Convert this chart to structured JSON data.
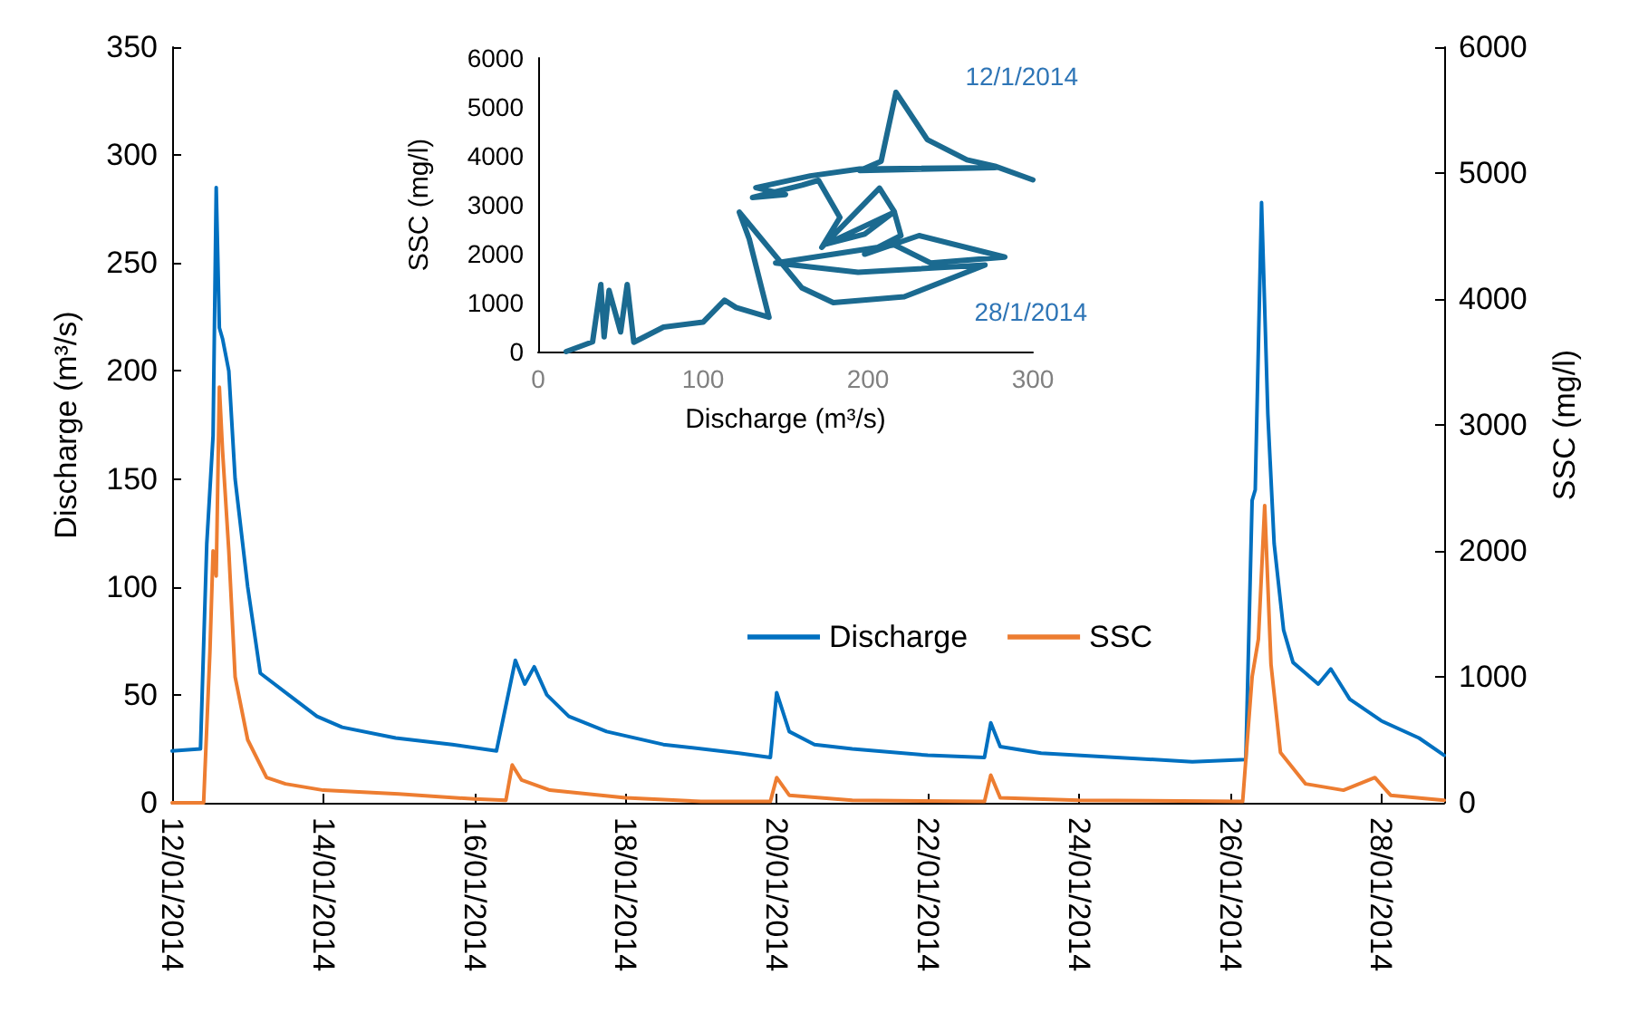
{
  "chart_data": [
    {
      "type": "line",
      "ylabel": "Discharge (m³/s)",
      "y2label": "SSC (mg/l)",
      "legend": "right",
      "marker": "none",
      "xlim": [
        "2014-01-12T00:00",
        "2014-01-28T20:00"
      ],
      "xticks": [
        {
          "value": "2014-01-12T00:00",
          "label": "12/01/2014"
        },
        {
          "value": "2014-01-14T00:00",
          "label": "14/01/2014"
        },
        {
          "value": "2014-01-16T00:00",
          "label": "16/01/2014"
        },
        {
          "value": "2014-01-18T00:00",
          "label": "18/01/2014"
        },
        {
          "value": "2014-01-20T00:00",
          "label": "20/01/2014"
        },
        {
          "value": "2014-01-22T00:00",
          "label": "22/01/2014"
        },
        {
          "value": "2014-01-24T00:00",
          "label": "24/01/2014"
        },
        {
          "value": "2014-01-26T00:00",
          "label": "26/01/2014"
        },
        {
          "value": "2014-01-28T00:00",
          "label": "28/01/2014"
        }
      ],
      "ylim": [
        0,
        350
      ],
      "yticks": [
        0,
        50,
        100,
        150,
        200,
        250,
        300,
        350
      ],
      "y2lim": [
        0,
        6000
      ],
      "y2ticks": [
        0,
        1000,
        2000,
        3000,
        4000,
        5000,
        6000
      ],
      "series": [
        {
          "name": "Discharge",
          "color": "#0070c0",
          "x": [
            "2014-01-12T00:00",
            "2014-01-12T09:00",
            "2014-01-12T11:00",
            "2014-01-12T13:00",
            "2014-01-12T14:00",
            "2014-01-12T15:00",
            "2014-01-12T16:00",
            "2014-01-12T18:00",
            "2014-01-12T20:00",
            "2014-01-13T00:00",
            "2014-01-13T04:00",
            "2014-01-13T13:00",
            "2014-01-13T22:00",
            "2014-01-14T06:00",
            "2014-01-14T23:00",
            "2014-01-15T17:00",
            "2014-01-16T07:00",
            "2014-01-16T10:00",
            "2014-01-16T13:00",
            "2014-01-16T16:00",
            "2014-01-16T19:00",
            "2014-01-16T23:00",
            "2014-01-17T06:00",
            "2014-01-17T18:00",
            "2014-01-18T12:00",
            "2014-01-19T12:00",
            "2014-01-19T22:00",
            "2014-01-20T00:00",
            "2014-01-20T04:00",
            "2014-01-20T12:00",
            "2014-01-21T00:00",
            "2014-01-22T00:00",
            "2014-01-22T18:00",
            "2014-01-22T20:00",
            "2014-01-22T23:00",
            "2014-01-23T12:00",
            "2014-01-24T12:00",
            "2014-01-25T12:00",
            "2014-01-26T05:00",
            "2014-01-26T07:00",
            "2014-01-26T08:00",
            "2014-01-26T10:00",
            "2014-01-26T12:00",
            "2014-01-26T14:00",
            "2014-01-26T17:00",
            "2014-01-26T20:00",
            "2014-01-27T00:00",
            "2014-01-27T04:00",
            "2014-01-27T08:00",
            "2014-01-27T14:00",
            "2014-01-28T00:00",
            "2014-01-28T12:00",
            "2014-01-28T20:00"
          ],
          "values": [
            24,
            25,
            120,
            170,
            285,
            220,
            215,
            200,
            150,
            100,
            60,
            50,
            40,
            35,
            30,
            27,
            24,
            45,
            66,
            55,
            63,
            50,
            40,
            33,
            27,
            23,
            21,
            51,
            33,
            27,
            25,
            22,
            21,
            37,
            26,
            23,
            21,
            19,
            20,
            140,
            145,
            278,
            180,
            120,
            80,
            65,
            60,
            55,
            62,
            48,
            38,
            30,
            22
          ]
        },
        {
          "name": "SSC",
          "color": "#ed7d31",
          "axis": "y2",
          "x": [
            "2014-01-12T00:00",
            "2014-01-12T10:00",
            "2014-01-12T12:00",
            "2014-01-12T13:00",
            "2014-01-12T14:00",
            "2014-01-12T15:00",
            "2014-01-12T16:00",
            "2014-01-12T18:00",
            "2014-01-12T20:00",
            "2014-01-13T00:00",
            "2014-01-13T06:00",
            "2014-01-13T12:00",
            "2014-01-14T00:00",
            "2014-01-15T00:00",
            "2014-01-16T00:00",
            "2014-01-16T10:00",
            "2014-01-16T12:00",
            "2014-01-16T15:00",
            "2014-01-17T00:00",
            "2014-01-18T00:00",
            "2014-01-19T00:00",
            "2014-01-19T22:00",
            "2014-01-20T00:00",
            "2014-01-20T04:00",
            "2014-01-21T00:00",
            "2014-01-22T18:00",
            "2014-01-22T20:00",
            "2014-01-22T23:00",
            "2014-01-24T00:00",
            "2014-01-26T04:00",
            "2014-01-26T07:00",
            "2014-01-26T09:00",
            "2014-01-26T11:00",
            "2014-01-26T13:00",
            "2014-01-26T16:00",
            "2014-01-27T00:00",
            "2014-01-27T12:00",
            "2014-01-27T22:00",
            "2014-01-28T03:00",
            "2014-01-28T20:00"
          ],
          "values": [
            0,
            0,
            1200,
            2000,
            1800,
            3300,
            2800,
            2000,
            1000,
            500,
            200,
            150,
            100,
            70,
            30,
            20,
            300,
            180,
            100,
            40,
            10,
            10,
            200,
            60,
            20,
            10,
            220,
            40,
            20,
            10,
            1000,
            1300,
            2360,
            1100,
            400,
            150,
            100,
            200,
            60,
            20
          ]
        }
      ]
    },
    {
      "type": "line",
      "xlabel": "Discharge (m³/s)",
      "ylabel": "SSC (mg/l)",
      "marker": "none",
      "xlim": [
        0,
        300
      ],
      "xticks": [
        0,
        100,
        200,
        300
      ],
      "ylim": [
        0,
        6000
      ],
      "yticks": [
        0,
        1000,
        2000,
        3000,
        4000,
        5000,
        6000
      ],
      "annotations": [
        "12/1/2014",
        "28/1/2014"
      ],
      "series": [
        {
          "color": "#1b6a90",
          "x": [
            300,
            277,
            260,
            236,
            217,
            208,
            195,
            277,
            195,
            165,
            132,
            150,
            130,
            160,
            170,
            183,
            172,
            207,
            216,
            198,
            175,
            216,
            220,
            198,
            231,
            283,
            238,
            216,
            144,
            194,
            271,
            222,
            179,
            160,
            122,
            128,
            140,
            120,
            113,
            100,
            76,
            58,
            54,
            50,
            43,
            40,
            38,
            33,
            17
          ],
          "values": [
            3510,
            3790,
            3920,
            4330,
            5300,
            3890,
            3700,
            3760,
            3730,
            3590,
            3350,
            3210,
            3150,
            3400,
            3500,
            2740,
            2130,
            3340,
            2860,
            2400,
            2200,
            2850,
            2370,
            1990,
            2370,
            1930,
            1810,
            2180,
            1810,
            1620,
            1770,
            1120,
            1000,
            1300,
            2850,
            2300,
            700,
            900,
            1050,
            600,
            500,
            190,
            1370,
            400,
            1250,
            300,
            1370,
            200,
            0
          ]
        }
      ]
    }
  ]
}
